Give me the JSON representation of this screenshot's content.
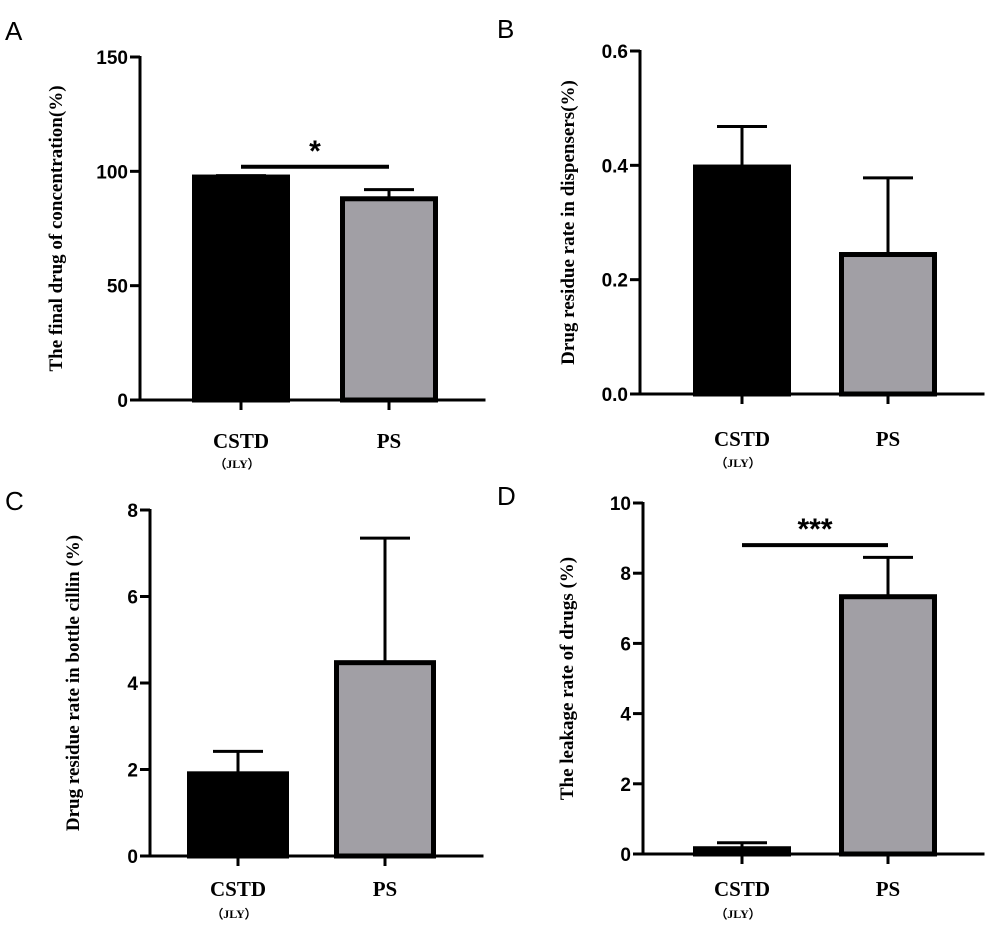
{
  "colors": {
    "cstd": "#000000",
    "ps": "#a19fa5",
    "axis": "#000000"
  },
  "chart_data": [
    {
      "type": "bar",
      "panel": "A",
      "ylabel": "The final drug of concentration(%)",
      "ylim": [
        0,
        150
      ],
      "yticks": [
        0,
        50,
        100,
        150
      ],
      "categories": [
        {
          "label": "CSTD",
          "sub": "（JLY）"
        },
        {
          "label": "PS",
          "sub": ""
        }
      ],
      "values": [
        97.5,
        88
      ],
      "errors": [
        0.6,
        4
      ],
      "significance": {
        "label": "*",
        "y": 102
      }
    },
    {
      "type": "bar",
      "panel": "B",
      "ylabel": "Drug residue  rate in dispensers(%)",
      "ylim": [
        0,
        0.6
      ],
      "yticks": [
        0.0,
        0.2,
        0.4,
        0.6
      ],
      "tick_decimals": 1,
      "categories": [
        {
          "label": "CSTD",
          "sub": "（JLY）"
        },
        {
          "label": "PS",
          "sub": ""
        }
      ],
      "values": [
        0.397,
        0.244
      ],
      "errors": [
        0.071,
        0.134
      ]
    },
    {
      "type": "bar",
      "panel": "C",
      "ylabel": "Drug residue rate in bottle cillin (%)",
      "ylim": [
        0,
        8
      ],
      "yticks": [
        0,
        2,
        4,
        6,
        8
      ],
      "categories": [
        {
          "label": "CSTD",
          "sub": "（JLY）"
        },
        {
          "label": "PS",
          "sub": ""
        }
      ],
      "values": [
        1.9,
        4.47
      ],
      "errors": [
        0.52,
        2.88
      ]
    },
    {
      "type": "bar",
      "panel": "D",
      "ylabel": "The leakage rate of drugs (%)",
      "ylim": [
        0,
        10
      ],
      "yticks": [
        0,
        2,
        4,
        6,
        8,
        10
      ],
      "categories": [
        {
          "label": "CSTD",
          "sub": "（JLY）"
        },
        {
          "label": "PS",
          "sub": ""
        }
      ],
      "values": [
        0.15,
        7.33
      ],
      "errors": [
        0.17,
        1.12
      ],
      "significance": {
        "label": "***",
        "y": 8.8
      }
    }
  ]
}
